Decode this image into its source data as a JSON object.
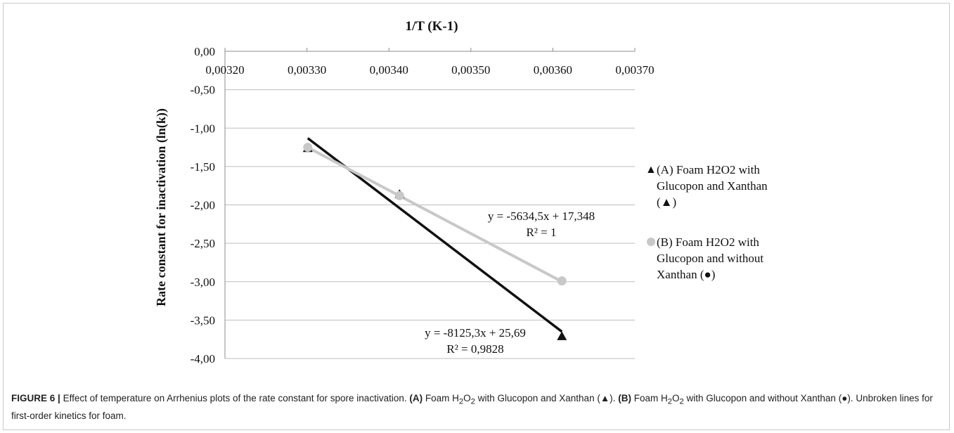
{
  "chart_data": {
    "type": "scatter",
    "title": "1/T (K-1)",
    "ylabel": "Rate constant for inactivation (ln(k))",
    "xlim": [
      0.0032,
      0.0037
    ],
    "ylim": [
      -4.0,
      0.0
    ],
    "x_ticks": [
      "0,00320",
      "0,00330",
      "0,00340",
      "0,00350",
      "0,00360",
      "0,00370"
    ],
    "y_ticks": [
      "0,00",
      "-0,50",
      "-1,00",
      "-1,50",
      "-2,00",
      "-2,50",
      "-3,00",
      "-3,50",
      "-4,00"
    ],
    "grid": "horizontal",
    "legend_position": "right",
    "series": [
      {
        "name": "(A) Foam H2O2 with Glucopon and Xanthan (▲)",
        "marker": "triangle",
        "color": "#111111",
        "points": [
          [
            0.003301,
            -1.26
          ],
          [
            0.003413,
            -1.86
          ],
          [
            0.003611,
            -3.71
          ]
        ],
        "trendline": {
          "slope": -8125.3,
          "intercept": 25.69
        },
        "equation": "y = -8125,3x + 25,69",
        "r2": "R² = 0,9828"
      },
      {
        "name": "(B) Foam H2O2 with Glucopon and without Xanthan (●)",
        "marker": "circle",
        "color": "#c8c8c8",
        "points": [
          [
            0.003301,
            -1.25
          ],
          [
            0.003413,
            -1.88
          ],
          [
            0.003611,
            -2.99
          ]
        ],
        "trendline": {
          "slope": -5634.5,
          "intercept": 17.348
        },
        "equation": "y = -5634,5x + 17,348",
        "r2": "R² = 1"
      }
    ]
  },
  "legend": {
    "a_lines": [
      "(A) Foam H2O2 with",
      "Glucopon and Xanthan",
      "(▲)"
    ],
    "b_lines": [
      "(B) Foam H2O2 with",
      "Glucopon and without",
      "Xanthan (●)"
    ],
    "a_symbol": "▲",
    "b_symbol": "●"
  },
  "caption": {
    "label": "FIGURE 6 |",
    "text_1": "Effect of temperature on Arrhenius plots of the rate constant for spore inactivation.",
    "a_label": "(A)",
    "a_text_1": "Foam H",
    "a_sub_1": "2",
    "a_text_2": "O",
    "a_sub_2": "2",
    "a_text_3": "with Glucopon and Xanthan (▲).",
    "b_label": "(B)",
    "b_text_1": "Foam H",
    "b_sub_1": "2",
    "b_text_2": "O",
    "b_sub_2": "2",
    "b_text_3": "with Glucopon and without Xanthan (●). Unbroken lines for first-order kinetics for foam."
  }
}
